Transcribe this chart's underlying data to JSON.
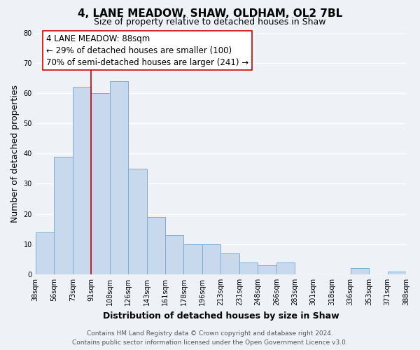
{
  "title": "4, LANE MEADOW, SHAW, OLDHAM, OL2 7BL",
  "subtitle": "Size of property relative to detached houses in Shaw",
  "xlabel": "Distribution of detached houses by size in Shaw",
  "ylabel": "Number of detached properties",
  "bar_values": [
    14,
    39,
    62,
    60,
    64,
    35,
    19,
    13,
    10,
    10,
    7,
    4,
    3,
    4,
    0,
    0,
    0,
    2,
    0,
    1
  ],
  "bin_labels": [
    "38sqm",
    "56sqm",
    "73sqm",
    "91sqm",
    "108sqm",
    "126sqm",
    "143sqm",
    "161sqm",
    "178sqm",
    "196sqm",
    "213sqm",
    "231sqm",
    "248sqm",
    "266sqm",
    "283sqm",
    "301sqm",
    "318sqm",
    "336sqm",
    "353sqm",
    "371sqm",
    "388sqm"
  ],
  "bar_color": "#c8d9ed",
  "bar_edge_color": "#7aafd4",
  "ylim": [
    0,
    80
  ],
  "yticks": [
    0,
    10,
    20,
    30,
    40,
    50,
    60,
    70,
    80
  ],
  "vline_color": "#cc0000",
  "annotation_text": "4 LANE MEADOW: 88sqm\n← 29% of detached houses are smaller (100)\n70% of semi-detached houses are larger (241) →",
  "footer_line1": "Contains HM Land Registry data © Crown copyright and database right 2024.",
  "footer_line2": "Contains public sector information licensed under the Open Government Licence v3.0.",
  "background_color": "#eef2f7",
  "grid_color": "#ffffff",
  "title_fontsize": 11,
  "subtitle_fontsize": 9,
  "ylabel_fontsize": 9,
  "xlabel_fontsize": 9,
  "tick_label_fontsize": 7,
  "annotation_fontsize": 8.5,
  "footer_fontsize": 6.5
}
